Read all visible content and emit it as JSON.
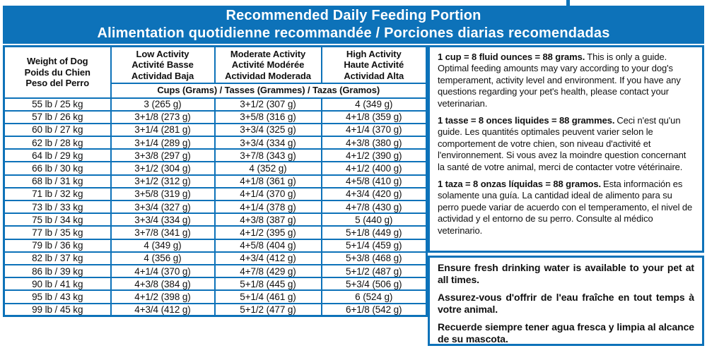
{
  "colors": {
    "brand_blue": "#0d72b9",
    "text": "#101010"
  },
  "header": {
    "title_en": "Recommended Daily Feeding Portion",
    "title_fr_es": "Alimentation quotidienne recommandée / Porciones diarias recomendadas"
  },
  "table": {
    "weight_header": [
      "Weight of Dog",
      "Poids du Chien",
      "Peso del Perro"
    ],
    "columns": [
      [
        "Low Activity",
        "Activité Basse",
        "Actividad Baja"
      ],
      [
        "Moderate Activity",
        "Activité Modérée",
        "Actividad Moderada"
      ],
      [
        "High Activity",
        "Haute Activité",
        "Actividad Alta"
      ]
    ],
    "units_header": "Cups (Grams) / Tasses (Grammes) / Tazas (Gramos)",
    "rows": [
      {
        "weight": "55 lb / 25 kg",
        "low": "3 (265 g)",
        "moderate": "3+1/2 (307 g)",
        "high": "4 (349 g)"
      },
      {
        "weight": "57 lb / 26 kg",
        "low": "3+1/8 (273 g)",
        "moderate": "3+5/8 (316 g)",
        "high": "4+1/8 (359 g)"
      },
      {
        "weight": "60 lb / 27 kg",
        "low": "3+1/4 (281 g)",
        "moderate": "3+3/4 (325 g)",
        "high": "4+1/4 (370 g)"
      },
      {
        "weight": "62 lb / 28 kg",
        "low": "3+1/4 (289 g)",
        "moderate": "3+3/4 (334 g)",
        "high": "4+3/8 (380 g)"
      },
      {
        "weight": "64 lb / 29 kg",
        "low": "3+3/8 (297 g)",
        "moderate": "3+7/8 (343 g)",
        "high": "4+1/2 (390 g)"
      },
      {
        "weight": "66 lb / 30 kg",
        "low": "3+1/2 (304 g)",
        "moderate": "4 (352 g)",
        "high": "4+1/2 (400 g)"
      },
      {
        "weight": "68 lb / 31 kg",
        "low": "3+1/2 (312 g)",
        "moderate": "4+1/8 (361 g)",
        "high": "4+5/8 (410 g)"
      },
      {
        "weight": "71 lb / 32 kg",
        "low": "3+5/8 (319 g)",
        "moderate": "4+1/4 (370 g)",
        "high": "4+3/4 (420 g)"
      },
      {
        "weight": "73 lb / 33 kg",
        "low": "3+3/4 (327 g)",
        "moderate": "4+1/4 (378 g)",
        "high": "4+7/8 (430 g)"
      },
      {
        "weight": "75 lb / 34 kg",
        "low": "3+3/4 (334 g)",
        "moderate": "4+3/8 (387 g)",
        "high": "5 (440 g)"
      },
      {
        "weight": "77 lb / 35 kg",
        "low": "3+7/8 (341 g)",
        "moderate": "4+1/2 (395 g)",
        "high": "5+1/8 (449 g)"
      },
      {
        "weight": "79 lb / 36 kg",
        "low": "4 (349 g)",
        "moderate": "4+5/8 (404 g)",
        "high": "5+1/4 (459 g)"
      },
      {
        "weight": "82 lb / 37 kg",
        "low": "4 (356 g)",
        "moderate": "4+3/4 (412 g)",
        "high": "5+3/8 (468 g)"
      },
      {
        "weight": "86 lb / 39 kg",
        "low": "4+1/4 (370 g)",
        "moderate": "4+7/8 (429 g)",
        "high": "5+1/2 (487 g)"
      },
      {
        "weight": "90 lb / 41 kg",
        "low": "4+3/8 (384 g)",
        "moderate": "5+1/8 (445 g)",
        "high": "5+3/4 (506 g)"
      },
      {
        "weight": "95 lb / 43 kg",
        "low": "4+1/2 (398 g)",
        "moderate": "5+1/4 (461 g)",
        "high": "6 (524 g)"
      },
      {
        "weight": "99 lb / 45 kg",
        "low": "4+3/4 (412 g)",
        "moderate": "5+1/2 (477 g)",
        "high": "6+1/8 (542 g)"
      }
    ]
  },
  "notes": {
    "en": {
      "lead": "1 cup = 8 fluid ounces = 88 grams.",
      "body": "This is only a guide. Optimal feeding amounts may vary according to your dog's temperament, activity level and environment. If you have any questions regarding your pet's health, please contact your veterinarian."
    },
    "fr": {
      "lead": "1 tasse = 8 onces liquides = 88 grammes.",
      "body": "Ceci n'est qu'un guide. Les quantités optimales peuvent varier selon le comportement de votre chien, son niveau d'activité et l'environnement. Si vous avez la moindre question concernant la santé de votre animal, merci de contacter votre vétérinaire."
    },
    "es": {
      "lead": "1 taza = 8 onzas líquidas = 88 gramos.",
      "body": "Esta información es solamente una guía. La cantidad ideal de alimento para su perro puede variar de acuerdo con el temperamento, el nivel de actividad y el entorno de su perro. Consulte al médico veterinario."
    }
  },
  "water_notes": [
    "Ensure fresh drinking water is available to your pet at all times.",
    "Assurez-vous d'offrir de l'eau fraîche en tout temps à votre animal.",
    "Recuerde siempre tener agua fresca y limpia al alcance de su mascota."
  ]
}
